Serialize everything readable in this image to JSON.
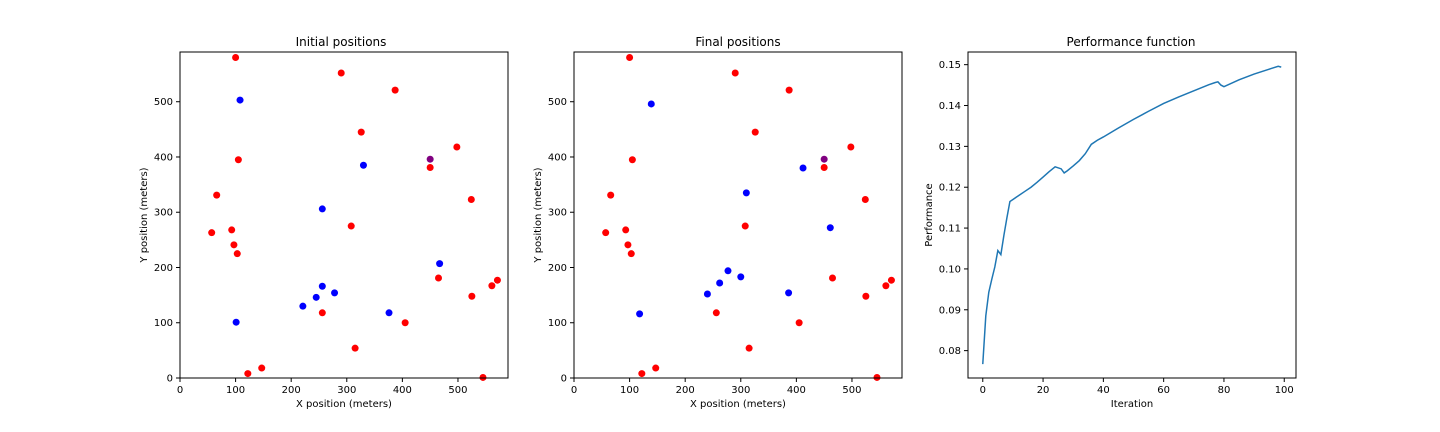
{
  "chart_data": [
    {
      "type": "scatter",
      "title": "Initial positions",
      "xlabel": "X position (meters)",
      "ylabel": "Y position (meters)",
      "xlim": [
        0,
        590
      ],
      "ylim": [
        0,
        590
      ],
      "xticks": [
        0,
        100,
        200,
        300,
        400,
        500
      ],
      "yticks": [
        0,
        100,
        200,
        300,
        400,
        500
      ],
      "grid": false,
      "colors": {
        "red": "#ff0000",
        "blue": "#0000ff",
        "purple": "#800080"
      },
      "points": {
        "red": [
          [
            100,
            580
          ],
          [
            290,
            552
          ],
          [
            387,
            521
          ],
          [
            326,
            445
          ],
          [
            105,
            395
          ],
          [
            498,
            418
          ],
          [
            450,
            381
          ],
          [
            66,
            331
          ],
          [
            524,
            323
          ],
          [
            308,
            275
          ],
          [
            93,
            268
          ],
          [
            57,
            263
          ],
          [
            97,
            241
          ],
          [
            103,
            225
          ],
          [
            465,
            181
          ],
          [
            571,
            177
          ],
          [
            561,
            167
          ],
          [
            525,
            148
          ],
          [
            256,
            118
          ],
          [
            405,
            100
          ],
          [
            315,
            54
          ],
          [
            147,
            18
          ],
          [
            122,
            8
          ],
          [
            545,
            1
          ]
        ],
        "blue": [
          [
            108,
            503
          ],
          [
            330,
            385
          ],
          [
            256,
            306
          ],
          [
            467,
            207
          ],
          [
            256,
            166
          ],
          [
            278,
            154
          ],
          [
            245,
            146
          ],
          [
            221,
            130
          ],
          [
            376,
            118
          ],
          [
            101,
            101
          ]
        ],
        "purple": [
          [
            450,
            396
          ]
        ]
      }
    },
    {
      "type": "scatter",
      "title": "Final positions",
      "xlabel": "X position (meters)",
      "ylabel": "Y position (meters)",
      "xlim": [
        0,
        590
      ],
      "ylim": [
        0,
        590
      ],
      "xticks": [
        0,
        100,
        200,
        300,
        400,
        500
      ],
      "yticks": [
        0,
        100,
        200,
        300,
        400,
        500
      ],
      "grid": false,
      "colors": {
        "red": "#ff0000",
        "blue": "#0000ff",
        "purple": "#800080"
      },
      "points": {
        "red": [
          [
            100,
            580
          ],
          [
            290,
            552
          ],
          [
            387,
            521
          ],
          [
            326,
            445
          ],
          [
            105,
            395
          ],
          [
            498,
            418
          ],
          [
            450,
            381
          ],
          [
            66,
            331
          ],
          [
            524,
            323
          ],
          [
            308,
            275
          ],
          [
            93,
            268
          ],
          [
            57,
            263
          ],
          [
            97,
            241
          ],
          [
            103,
            225
          ],
          [
            465,
            181
          ],
          [
            571,
            177
          ],
          [
            561,
            167
          ],
          [
            525,
            148
          ],
          [
            256,
            118
          ],
          [
            405,
            100
          ],
          [
            315,
            54
          ],
          [
            147,
            18
          ],
          [
            122,
            8
          ],
          [
            545,
            1
          ]
        ],
        "blue": [
          [
            139,
            496
          ],
          [
            412,
            380
          ],
          [
            310,
            335
          ],
          [
            461,
            272
          ],
          [
            277,
            194
          ],
          [
            300,
            183
          ],
          [
            262,
            172
          ],
          [
            240,
            152
          ],
          [
            386,
            154
          ],
          [
            118,
            116
          ]
        ],
        "purple": [
          [
            450,
            396
          ]
        ]
      }
    },
    {
      "type": "line",
      "title": "Performance function",
      "xlabel": "Iteration",
      "ylabel": "Performance",
      "xlim": [
        -4.9,
        103.9
      ],
      "ylim": [
        0.0733,
        0.1531
      ],
      "xticks": [
        0,
        20,
        40,
        60,
        80,
        100
      ],
      "yticks": [
        0.08,
        0.09,
        0.1,
        0.11,
        0.12,
        0.13,
        0.14,
        0.15
      ],
      "ytick_labels": [
        "0.08",
        "0.09",
        "0.10",
        "0.11",
        "0.12",
        "0.13",
        "0.14",
        "0.15"
      ],
      "grid": false,
      "colors": {
        "line": "#1f77b4"
      },
      "series": [
        {
          "x": [
            0,
            1,
            2,
            3,
            4,
            5,
            6,
            7,
            8,
            9,
            10,
            12,
            14,
            16,
            18,
            20,
            22,
            24,
            26,
            27,
            28,
            30,
            32,
            34,
            36,
            38,
            40,
            45,
            50,
            55,
            60,
            65,
            70,
            75,
            77,
            78,
            79,
            80,
            85,
            90,
            95,
            98,
            99
          ],
          "values": [
            0.0767,
            0.0885,
            0.0943,
            0.0975,
            0.1005,
            0.1045,
            0.1035,
            0.1082,
            0.1125,
            0.1165,
            0.117,
            0.118,
            0.119,
            0.12,
            0.1212,
            0.1225,
            0.1238,
            0.125,
            0.1245,
            0.1235,
            0.124,
            0.1252,
            0.1265,
            0.1282,
            0.1305,
            0.1315,
            0.1323,
            0.1345,
            0.1366,
            0.1386,
            0.1405,
            0.1421,
            0.1436,
            0.1451,
            0.1456,
            0.1458,
            0.145,
            0.1446,
            0.1463,
            0.1477,
            0.1489,
            0.1496,
            0.1494
          ]
        }
      ]
    }
  ]
}
